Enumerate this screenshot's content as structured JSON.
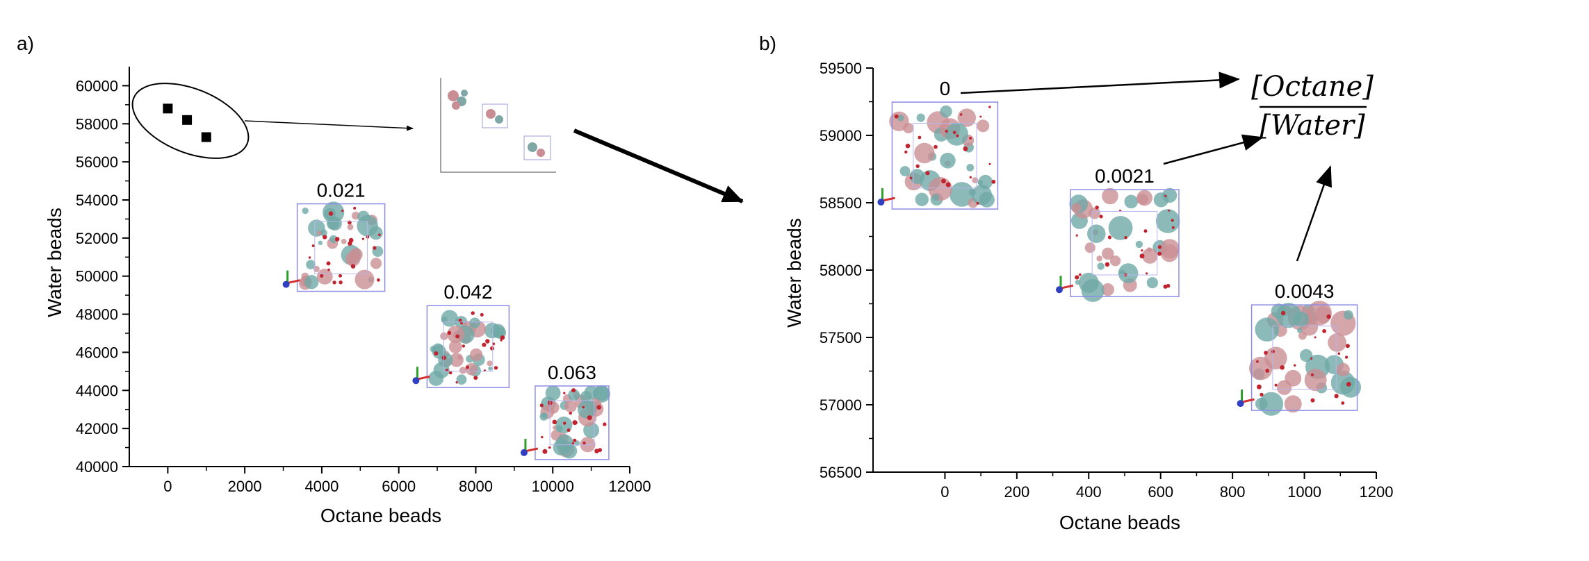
{
  "chart_data": [
    {
      "panel_label": "a)",
      "type": "scatter",
      "xlabel": "Octane beads",
      "ylabel": "Water beads",
      "xlim": [
        -1000,
        12000
      ],
      "ylim": [
        40000,
        61000
      ],
      "xticks": [
        0,
        2000,
        4000,
        6000,
        8000,
        10000,
        12000
      ],
      "yticks": [
        40000,
        42000,
        44000,
        46000,
        48000,
        50000,
        52000,
        54000,
        56000,
        58000,
        60000
      ],
      "points": [
        {
          "x": 0,
          "y": 58800
        },
        {
          "x": 500,
          "y": 58200
        },
        {
          "x": 1000,
          "y": 57300
        }
      ],
      "insets": [
        {
          "label": "0.021",
          "x": 4500,
          "y": 51500
        },
        {
          "label": "0.042",
          "x": 7800,
          "y": 46300
        },
        {
          "label": "0.063",
          "x": 10500,
          "y": 42300
        }
      ]
    },
    {
      "panel_label": "b)",
      "type": "scatter",
      "xlabel": "Octane beads",
      "ylabel": "Water beads",
      "xlim": [
        -200,
        1200
      ],
      "ylim": [
        56500,
        59500
      ],
      "xticks": [
        0,
        200,
        400,
        600,
        800,
        1000,
        1200
      ],
      "yticks": [
        56500,
        57000,
        57500,
        58000,
        58500,
        59000,
        59500
      ],
      "insets": [
        {
          "label": "0",
          "x": 0,
          "y": 58850
        },
        {
          "label": "0.0021",
          "x": 500,
          "y": 58200
        },
        {
          "label": "0.0043",
          "x": 1000,
          "y": 57350
        }
      ],
      "annotation": {
        "numerator": "[Octane]",
        "denominator": "[Water]"
      }
    }
  ]
}
